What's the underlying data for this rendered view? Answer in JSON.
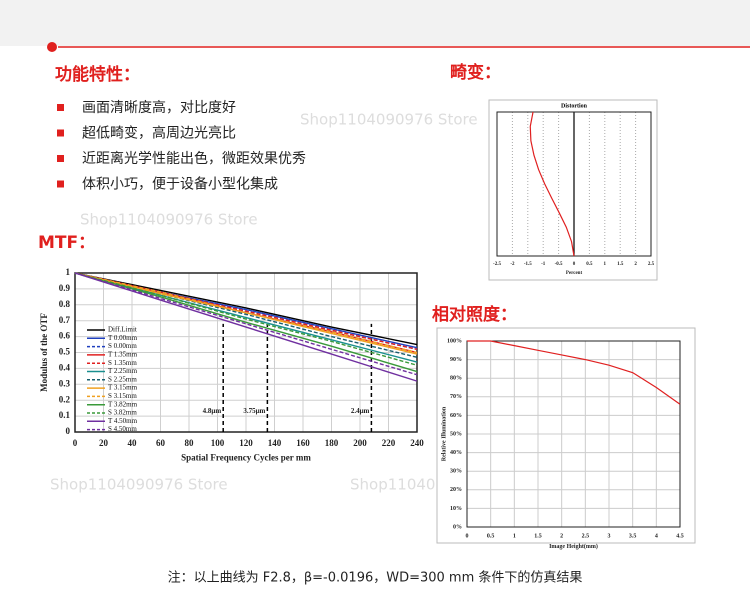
{
  "features": {
    "title": "功能特性：",
    "items": [
      "画面清晰度高，对比度好",
      "超低畸变，高周边光亮比",
      "近距离光学性能出色，微距效果优秀",
      "体积小巧，便于设备小型化集成"
    ]
  },
  "watermark": "Shop1104090976 Store",
  "chart_data": [
    {
      "type": "line",
      "title": "MTF：",
      "xlabel": "Spatial Frequency Cycles per mm",
      "ylabel": "Modulus of the OTF",
      "x": [
        0,
        60,
        120,
        180,
        240
      ],
      "xlim": [
        0,
        240
      ],
      "xticks": [
        0,
        20,
        40,
        60,
        80,
        100,
        120,
        140,
        160,
        180,
        200,
        220,
        240
      ],
      "ylim": [
        0,
        1
      ],
      "yticks": [
        0,
        0.1,
        0.2,
        0.3,
        0.4,
        0.5,
        0.6,
        0.7,
        0.8,
        0.9,
        1
      ],
      "grid": true,
      "legend": "left",
      "series": [
        {
          "name": "Diff.Limit",
          "color": "#000000",
          "dash": false,
          "values": [
            1,
            0.89,
            0.78,
            0.66,
            0.55
          ]
        },
        {
          "name": "T 0.00mm",
          "color": "#1f3fbf",
          "dash": false,
          "values": [
            1,
            0.88,
            0.77,
            0.65,
            0.53
          ]
        },
        {
          "name": "S 0.00mm",
          "color": "#1f3fbf",
          "dash": true,
          "values": [
            1,
            0.88,
            0.76,
            0.64,
            0.52
          ]
        },
        {
          "name": "T 1.35mm",
          "color": "#e02020",
          "dash": false,
          "values": [
            1,
            0.88,
            0.75,
            0.63,
            0.5
          ]
        },
        {
          "name": "S 1.35mm",
          "color": "#e02020",
          "dash": true,
          "values": [
            1,
            0.88,
            0.76,
            0.64,
            0.52
          ]
        },
        {
          "name": "T 2.25mm",
          "color": "#1a8f8f",
          "dash": false,
          "values": [
            1,
            0.86,
            0.72,
            0.58,
            0.44
          ]
        },
        {
          "name": "S 2.25mm",
          "color": "#1a5f6f",
          "dash": true,
          "values": [
            1,
            0.87,
            0.74,
            0.6,
            0.47
          ]
        },
        {
          "name": "T 3.15mm",
          "color": "#f0a020",
          "dash": false,
          "values": [
            1,
            0.87,
            0.75,
            0.62,
            0.49
          ]
        },
        {
          "name": "S 3.15mm",
          "color": "#f0a020",
          "dash": true,
          "values": [
            1,
            0.88,
            0.75,
            0.63,
            0.5
          ]
        },
        {
          "name": "T 3.82mm",
          "color": "#3a9a3a",
          "dash": false,
          "values": [
            1,
            0.85,
            0.69,
            0.54,
            0.38
          ]
        },
        {
          "name": "S 3.82mm",
          "color": "#3a9a3a",
          "dash": true,
          "values": [
            1,
            0.86,
            0.71,
            0.57,
            0.42
          ]
        },
        {
          "name": "T 4.50mm",
          "color": "#7030a0",
          "dash": false,
          "values": [
            1,
            0.83,
            0.66,
            0.49,
            0.32
          ]
        },
        {
          "name": "S 4.50mm",
          "color": "#7030a0",
          "dash": true,
          "values": [
            1,
            0.84,
            0.68,
            0.52,
            0.36
          ]
        }
      ],
      "annotations": [
        {
          "x": 104,
          "label": "4.8μm"
        },
        {
          "x": 135,
          "label": "3.75μm"
        },
        {
          "x": 208,
          "label": "2.4μm"
        }
      ]
    },
    {
      "type": "line",
      "title": "畸变：",
      "subtitle": "Distortion",
      "xlabel": "Percent",
      "xlim": [
        -2.5,
        2.5
      ],
      "xticks": [
        -2.5,
        -2,
        -1.5,
        -1,
        -0.5,
        0,
        0.5,
        1,
        1.5,
        2,
        2.5
      ],
      "ylim": [
        0,
        1
      ],
      "grid": true,
      "series": [
        {
          "color": "#e02020",
          "x": [
            0,
            -0.08,
            -0.25,
            -0.48,
            -0.72,
            -0.95,
            -1.15,
            -1.3,
            -1.4,
            -1.42,
            -1.33
          ],
          "values": [
            0,
            0.1,
            0.2,
            0.3,
            0.4,
            0.5,
            0.6,
            0.7,
            0.8,
            0.9,
            1
          ]
        }
      ]
    },
    {
      "type": "line",
      "title": "相对照度：",
      "xlabel": "Image Height(mm)",
      "ylabel": "Relative Illumination",
      "x": [
        0,
        0.5,
        1,
        1.5,
        2,
        2.5,
        3,
        3.5,
        4,
        4.5
      ],
      "xlim": [
        0,
        4.5
      ],
      "xticks": [
        0,
        0.5,
        1,
        1.5,
        2,
        2.5,
        3,
        3.5,
        4,
        4.5
      ],
      "ylim": [
        0,
        100
      ],
      "yticks": [
        {
          "value": 0,
          "label": "0%"
        },
        {
          "value": 10,
          "label": "10%"
        },
        {
          "value": 20,
          "label": "20%"
        },
        {
          "value": 30,
          "label": "30%"
        },
        {
          "value": 40,
          "label": "40%"
        },
        {
          "value": 50,
          "label": "50%"
        },
        {
          "value": 60,
          "label": "60%"
        },
        {
          "value": 70,
          "label": "70%"
        },
        {
          "value": 80,
          "label": "80%"
        },
        {
          "value": 90,
          "label": "90%"
        },
        {
          "value": 100,
          "label": "100%"
        }
      ],
      "grid": true,
      "series": [
        {
          "color": "#e02020",
          "values": [
            100,
            100,
            97.5,
            95,
            92.5,
            90,
            87,
            83,
            75,
            66
          ]
        }
      ]
    }
  ],
  "footnote": "注：以上曲线为 F2.8，β=-0.0196，WD=300 mm 条件下的仿真结果"
}
